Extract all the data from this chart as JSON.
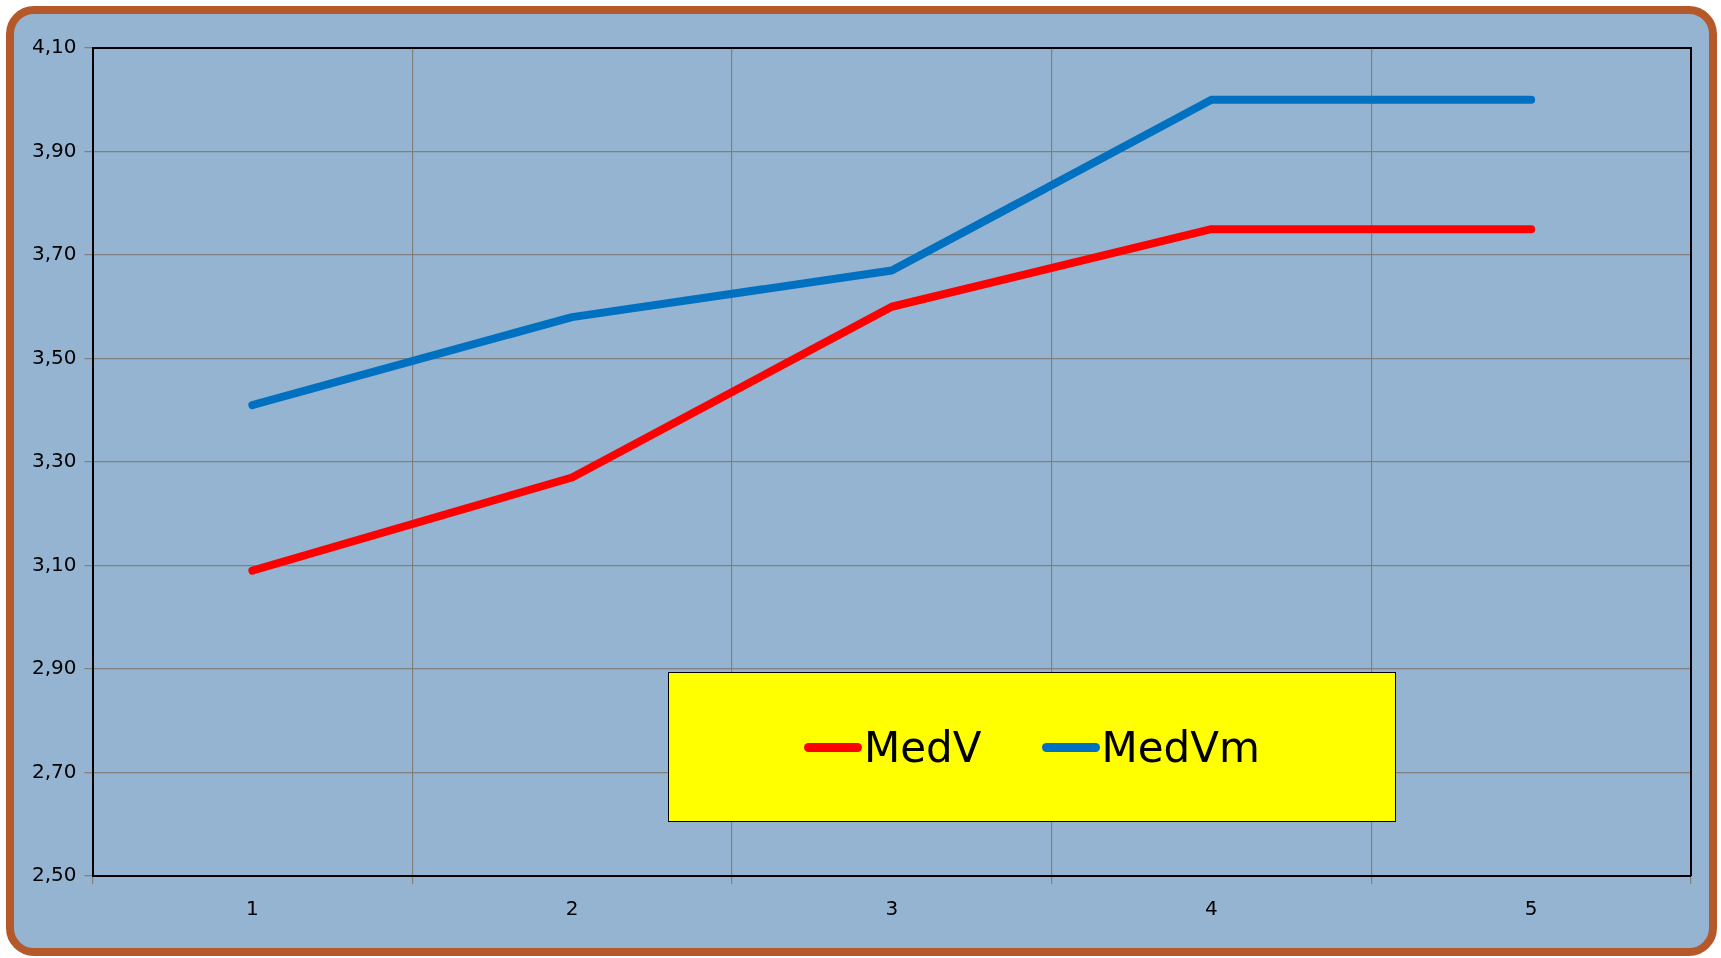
{
  "chart_data": {
    "type": "line",
    "categories": [
      "1",
      "2",
      "3",
      "4",
      "5"
    ],
    "series": [
      {
        "name": "MedV",
        "color": "#ff0000",
        "values": [
          3.09,
          3.27,
          3.6,
          3.75,
          3.75
        ]
      },
      {
        "name": "MedVm",
        "color": "#0070c0",
        "values": [
          3.41,
          3.58,
          3.67,
          4.0,
          4.0
        ]
      }
    ],
    "ylim": [
      2.5,
      4.1
    ],
    "yticks": [
      {
        "value": 2.5,
        "label": "2,50"
      },
      {
        "value": 2.7,
        "label": "2,70"
      },
      {
        "value": 2.9,
        "label": "2,90"
      },
      {
        "value": 3.1,
        "label": "3,10"
      },
      {
        "value": 3.3,
        "label": "3,30"
      },
      {
        "value": 3.5,
        "label": "3,50"
      },
      {
        "value": 3.7,
        "label": "3,70"
      },
      {
        "value": 3.9,
        "label": "3,90"
      },
      {
        "value": 4.1,
        "label": "4,10"
      }
    ],
    "grid": true,
    "legend": "bottom",
    "marker": "none",
    "line_style": "solid"
  }
}
